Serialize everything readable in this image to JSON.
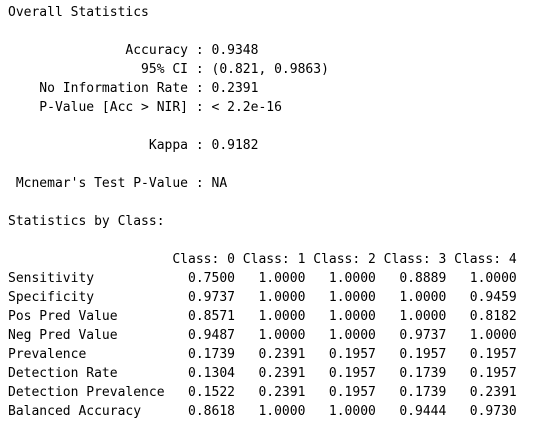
{
  "console": {
    "lines": [
      "Overall Statistics",
      "",
      "               Accuracy : 0.9348",
      "                 95% CI : (0.821, 0.9863)",
      "    No Information Rate : 0.2391",
      "    P-Value [Acc > NIR] : < 2.2e-16",
      "",
      "                  Kappa : 0.9182",
      "",
      " Mcnemar's Test P-Value : NA",
      "",
      "Statistics by Class:",
      "",
      "                     Class: 0 Class: 1 Class: 2 Class: 3 Class: 4",
      "Sensitivity            0.7500   1.0000   1.0000   0.8889   1.0000",
      "Specificity            0.9737   1.0000   1.0000   1.0000   0.9459",
      "Pos Pred Value         0.8571   1.0000   1.0000   1.0000   0.8182",
      "Neg Pred Value         0.9487   1.0000   1.0000   0.9737   1.0000",
      "Prevalence             0.1739   0.2391   0.1957   0.1957   0.1957",
      "Detection Rate         0.1304   0.2391   0.1957   0.1739   0.1957",
      "Detection Prevalence   0.1522   0.2391   0.1957   0.1739   0.2391",
      "Balanced Accuracy      0.8618   1.0000   1.0000   0.9444   0.9730"
    ]
  }
}
